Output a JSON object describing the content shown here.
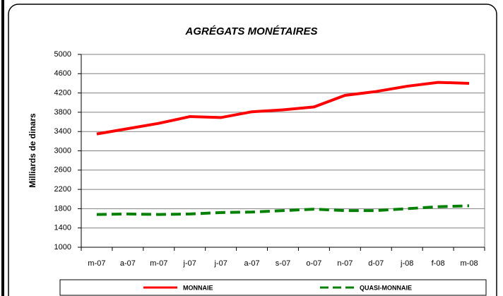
{
  "chart_data": {
    "type": "line",
    "title": "AGRÉGATS MONÉTAIRES",
    "y_label": "Milliards de dinars",
    "categories": [
      "m-07",
      "a-07",
      "m-07",
      "j-07",
      "j-07",
      "a-07",
      "s-07",
      "o-07",
      "n-07",
      "d-07",
      "j-08",
      "f-08",
      "m-08"
    ],
    "series": [
      {
        "name": "MONNAIE",
        "color": "#ff0000",
        "dash": false,
        "values": [
          3350,
          3460,
          3570,
          3710,
          3690,
          3810,
          3850,
          3910,
          4150,
          4230,
          4340,
          4420,
          4400
        ]
      },
      {
        "name": "QUASI-MONNAIE",
        "color": "#008000",
        "dash": true,
        "values": [
          1680,
          1690,
          1680,
          1690,
          1720,
          1730,
          1760,
          1790,
          1760,
          1760,
          1800,
          1840,
          1860
        ]
      }
    ],
    "ylim": [
      1000,
      5000
    ],
    "yticks": [
      1000,
      1400,
      1800,
      2200,
      2600,
      3000,
      3400,
      3800,
      4200,
      4600,
      5000
    ],
    "grid": true,
    "legend": "bottom"
  }
}
